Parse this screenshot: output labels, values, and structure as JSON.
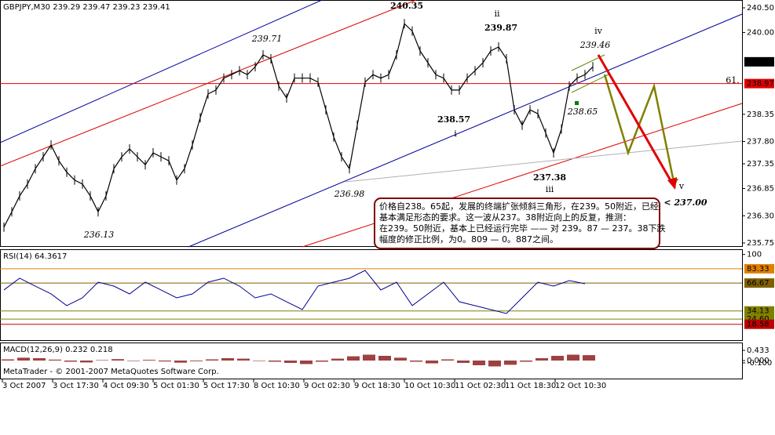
{
  "header": {
    "title": "GBPJPY,M30  239.29 239.47 239.23 239.41"
  },
  "price_axis": {
    "ticks": [
      {
        "value": 240.5,
        "label": "240.50"
      },
      {
        "value": 240,
        "label": "240.00"
      },
      {
        "value": 238.35,
        "label": "238.35"
      },
      {
        "value": 237.8,
        "label": "237.80"
      },
      {
        "value": 237.35,
        "label": "237.35"
      },
      {
        "value": 236.85,
        "label": "236.85"
      },
      {
        "value": 236.3,
        "label": "236.30"
      },
      {
        "value": 235.75,
        "label": "235.75"
      }
    ],
    "current": {
      "value": 239.41,
      "label": "239.41"
    },
    "level": {
      "value": 238.97,
      "label": "238.97"
    }
  },
  "time_axis": {
    "labels": [
      "3 Oct 2007",
      "3 Oct 17:30",
      "4 Oct 09:30",
      "5 Oct 01:30",
      "5 Oct 17:30",
      "8 Oct 10:30",
      "9 Oct 02:30",
      "9 Oct 18:30",
      "10 Oct 10:30",
      "11 Oct 02:30",
      "11 Oct 18:30",
      "12 Oct 10:30"
    ]
  },
  "price": {
    "values": [
      236.07,
      236.38,
      236.7,
      236.94,
      237.25,
      237.49,
      237.73,
      237.41,
      237.18,
      237.02,
      236.94,
      236.7,
      236.38,
      236.7,
      237.25,
      237.49,
      237.65,
      237.49,
      237.33,
      237.57,
      237.49,
      237.41,
      237.02,
      237.25,
      237.73,
      238.28,
      238.76,
      238.84,
      239.08,
      239.15,
      239.23,
      239.15,
      239.31,
      239.55,
      239.47,
      238.92,
      238.68,
      239.08,
      239.08,
      239.08,
      239.0,
      238.44,
      237.89,
      237.49,
      237.25,
      238.13,
      239.0,
      239.15,
      239.08,
      239.15,
      239.55,
      240.18,
      240.03,
      239.63,
      239.39,
      239.15,
      239.08,
      238.84,
      238.84,
      239.08,
      239.23,
      239.39,
      239.63,
      239.71,
      239.47,
      238.44,
      238.13,
      238.44,
      238.36,
      237.97,
      237.57,
      238.05,
      238.92,
      239.08,
      239.15,
      239.31
    ]
  },
  "wave_labels": [
    "240.35",
    "ii",
    "239.87",
    "iv",
    "239.46",
    "239.71",
    "238.57",
    "i",
    "236.98",
    "237.38",
    "iii",
    "238.65",
    "236.13",
    "v",
    "< 237.00",
    "61."
  ],
  "annotation": {
    "lines": [
      "价格自238。65起，发展的终端扩张倾斜三角形，在239。50附近，已经",
      "基本满足形态的要求。这一波从237。38附近向上的反复，推测：",
      "在239。50附近，基本上已经运行完毕 —— 对 239。87 — 237。38下跌",
      "幅度的修正比例，为0。809 — 0。887之间。"
    ]
  },
  "rsi": {
    "title": "RSI(14) 64.3617",
    "ticks": [
      100
    ],
    "levels": [
      {
        "value": 83.33,
        "label": "83.33"
      },
      {
        "value": 66.67,
        "label": "66.67"
      },
      {
        "value": 34.13,
        "label": "34.13"
      },
      {
        "value": 24.6,
        "label": "24.60"
      },
      {
        "value": 18.58,
        "label": "18.58"
      }
    ],
    "values": [
      58.6,
      72.3,
      63.1,
      54.0,
      40.3,
      49.4,
      67.7,
      63.1,
      54.0,
      67.7,
      58.6,
      49.4,
      54.0,
      67.7,
      72.3,
      63.1,
      49.4,
      54.0,
      44.8,
      35.7,
      63.1,
      67.7,
      72.3,
      81.4,
      58.6,
      67.7,
      40.3,
      54.0,
      67.7,
      44.8,
      40.3,
      35.7,
      31.1,
      49.4,
      67.7,
      63.1,
      69.5,
      65.9
    ]
  },
  "macd": {
    "title": "MACD(12,26,9) 0.232 0.218",
    "ticks": [
      {
        "value": 0.433,
        "label": "0.433"
      },
      {
        "value": 0,
        "label": "0.000"
      },
      {
        "value": -0.1,
        "label": "-0.100"
      }
    ],
    "values": [
      0.05,
      0.12,
      0.1,
      0.04,
      -0.05,
      -0.08,
      0.02,
      0.06,
      -0.02,
      0.03,
      -0.04,
      -0.09,
      -0.03,
      0.05,
      0.1,
      0.08,
      -0.02,
      -0.05,
      -0.1,
      -0.15,
      -0.05,
      0.08,
      0.18,
      0.25,
      0.2,
      0.12,
      -0.05,
      -0.12,
      0.05,
      -0.1,
      -0.2,
      -0.25,
      -0.18,
      -0.05,
      0.1,
      0.2,
      0.25,
      0.23
    ]
  },
  "footer": "MetaTrader - © 2001-2007 MetaQuotes Software Corp."
}
